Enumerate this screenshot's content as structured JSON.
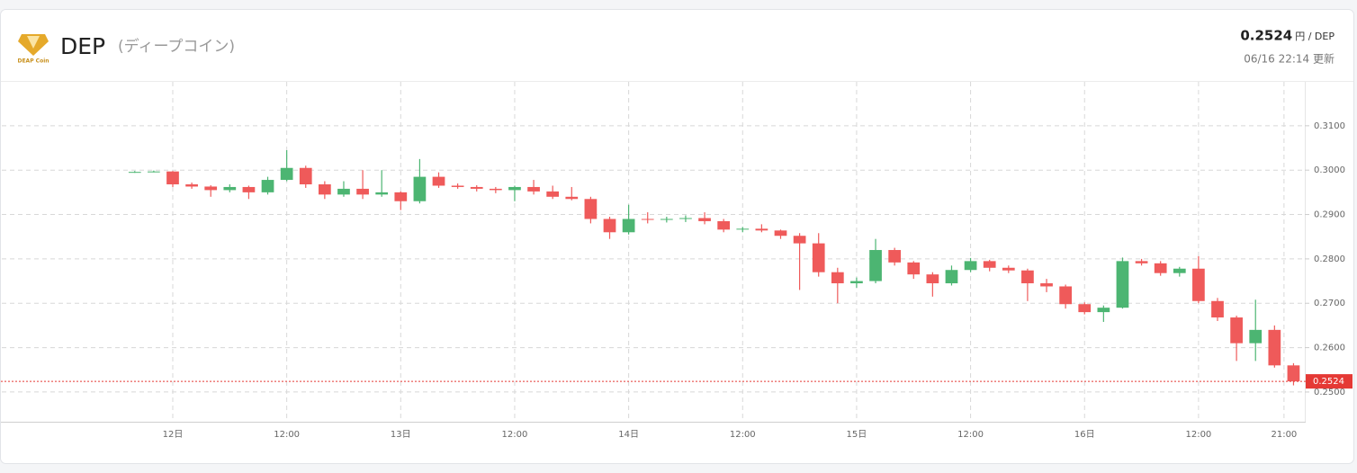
{
  "header": {
    "logo_text": "DEAP Coin",
    "title": "DEP",
    "subtitle": "(ディープコイン)",
    "price_unit": "円 / DEP",
    "updated": "06/16 22:14 更新"
  },
  "chart_data": {
    "type": "candlestick",
    "current_price": 0.2524,
    "up_color": "#4cb572",
    "down_color": "#ef5a5a",
    "current_line_color": "#e53935",
    "grid": true,
    "xlim": [
      "11日 06:00",
      "16日 23:00"
    ],
    "xticks": [
      {
        "value": "12日 00:00",
        "label": "12日"
      },
      {
        "value": "12日 12:00",
        "label": "12:00"
      },
      {
        "value": "13日 00:00",
        "label": "13日"
      },
      {
        "value": "13日 12:00",
        "label": "12:00"
      },
      {
        "value": "14日 00:00",
        "label": "14日"
      },
      {
        "value": "14日 12:00",
        "label": "12:00"
      },
      {
        "value": "15日 00:00",
        "label": "15日"
      },
      {
        "value": "15日 12:00",
        "label": "12:00"
      },
      {
        "value": "16日 00:00",
        "label": "16日"
      },
      {
        "value": "16日 12:00",
        "label": "12:00"
      },
      {
        "value": "16日 21:00",
        "label": "21:00"
      }
    ],
    "ylim": [
      0.2433,
      0.3199
    ],
    "yticks": [
      {
        "value": 0.25,
        "label": "0.2500"
      },
      {
        "value": 0.26,
        "label": "0.2600"
      },
      {
        "value": 0.27,
        "label": "0.2700"
      },
      {
        "value": 0.28,
        "label": "0.2800"
      },
      {
        "value": 0.29,
        "label": "0.2900"
      },
      {
        "value": 0.3,
        "label": "0.3000"
      },
      {
        "value": 0.31,
        "label": "0.3100"
      }
    ],
    "x": [
      "11日 20:00",
      "11日 22:00",
      "12日 00:00",
      "12日 02:00",
      "12日 04:00",
      "12日 06:00",
      "12日 08:00",
      "12日 10:00",
      "12日 12:00",
      "12日 14:00",
      "12日 16:00",
      "12日 18:00",
      "12日 20:00",
      "12日 22:00",
      "13日 00:00",
      "13日 02:00",
      "13日 04:00",
      "13日 06:00",
      "13日 08:00",
      "13日 10:00",
      "13日 12:00",
      "13日 14:00",
      "13日 16:00",
      "13日 18:00",
      "13日 20:00",
      "13日 22:00",
      "14日 00:00",
      "14日 02:00",
      "14日 04:00",
      "14日 06:00",
      "14日 08:00",
      "14日 10:00",
      "14日 12:00",
      "14日 14:00",
      "14日 16:00",
      "14日 18:00",
      "14日 20:00",
      "14日 22:00",
      "15日 00:00",
      "15日 02:00",
      "15日 04:00",
      "15日 06:00",
      "15日 08:00",
      "15日 10:00",
      "15日 12:00",
      "15日 14:00",
      "15日 16:00",
      "15日 18:00",
      "15日 20:00",
      "15日 22:00",
      "16日 00:00",
      "16日 02:00",
      "16日 04:00",
      "16日 06:00",
      "16日 08:00",
      "16日 10:00",
      "16日 12:00",
      "16日 14:00",
      "16日 16:00",
      "16日 18:00",
      "16日 20:00",
      "16日 22:00"
    ],
    "open": [
      0.2995,
      0.2996,
      0.2997,
      0.2968,
      0.2963,
      0.2955,
      0.2962,
      0.295,
      0.2978,
      0.3005,
      0.2968,
      0.2945,
      0.2958,
      0.2945,
      0.295,
      0.293,
      0.2985,
      0.2965,
      0.2962,
      0.2958,
      0.2955,
      0.2962,
      0.2952,
      0.294,
      0.2935,
      0.289,
      0.286,
      0.289,
      0.2888,
      0.289,
      0.2892,
      0.2885,
      0.2866,
      0.2868,
      0.2864,
      0.2852,
      0.2835,
      0.277,
      0.2745,
      0.275,
      0.282,
      0.2792,
      0.2765,
      0.2745,
      0.2775,
      0.2795,
      0.278,
      0.2774,
      0.2745,
      0.2738,
      0.2698,
      0.268,
      0.269,
      0.2795,
      0.279,
      0.2768,
      0.2778,
      0.2705,
      0.2668,
      0.261,
      0.264,
      0.256
    ],
    "high": [
      0.2998,
      0.2999,
      0.2998,
      0.2972,
      0.2966,
      0.2968,
      0.2965,
      0.2985,
      0.3045,
      0.301,
      0.2975,
      0.2975,
      0.3,
      0.3,
      0.2952,
      0.3025,
      0.2995,
      0.297,
      0.2966,
      0.2962,
      0.2965,
      0.2978,
      0.2965,
      0.2962,
      0.294,
      0.2895,
      0.2922,
      0.2905,
      0.2895,
      0.2898,
      0.2905,
      0.289,
      0.2872,
      0.2878,
      0.2866,
      0.2858,
      0.2858,
      0.278,
      0.2758,
      0.2845,
      0.2825,
      0.2795,
      0.277,
      0.2785,
      0.2802,
      0.2798,
      0.2785,
      0.2778,
      0.2755,
      0.2742,
      0.2702,
      0.2695,
      0.2803,
      0.28,
      0.2795,
      0.2782,
      0.2806,
      0.2712,
      0.2672,
      0.2708,
      0.265,
      0.2565
    ],
    "low": [
      0.2994,
      0.2995,
      0.2962,
      0.2958,
      0.294,
      0.295,
      0.2935,
      0.2945,
      0.2975,
      0.296,
      0.2935,
      0.294,
      0.2935,
      0.294,
      0.291,
      0.2925,
      0.296,
      0.2958,
      0.2952,
      0.2948,
      0.293,
      0.2945,
      0.2935,
      0.2932,
      0.288,
      0.2845,
      0.2855,
      0.288,
      0.2882,
      0.2883,
      0.2878,
      0.286,
      0.286,
      0.286,
      0.2845,
      0.273,
      0.276,
      0.27,
      0.2735,
      0.2745,
      0.2785,
      0.2755,
      0.2715,
      0.274,
      0.277,
      0.2772,
      0.2768,
      0.2705,
      0.2725,
      0.2688,
      0.2675,
      0.2658,
      0.2688,
      0.2785,
      0.2762,
      0.276,
      0.27,
      0.266,
      0.257,
      0.257,
      0.2555,
      0.2515
    ],
    "close": [
      0.2996,
      0.2997,
      0.2968,
      0.2963,
      0.2955,
      0.2962,
      0.295,
      0.2978,
      0.3005,
      0.2968,
      0.2945,
      0.2958,
      0.2945,
      0.295,
      0.293,
      0.2985,
      0.2965,
      0.2962,
      0.2958,
      0.2955,
      0.2962,
      0.2952,
      0.294,
      0.2935,
      0.289,
      0.286,
      0.289,
      0.2888,
      0.289,
      0.2892,
      0.2885,
      0.2866,
      0.2868,
      0.2864,
      0.2852,
      0.2835,
      0.277,
      0.2745,
      0.275,
      0.282,
      0.2792,
      0.2765,
      0.2745,
      0.2775,
      0.2795,
      0.278,
      0.2774,
      0.2745,
      0.2738,
      0.2698,
      0.268,
      0.269,
      0.2795,
      0.279,
      0.2768,
      0.2778,
      0.2705,
      0.2668,
      0.261,
      0.264,
      0.256,
      0.2524
    ]
  }
}
